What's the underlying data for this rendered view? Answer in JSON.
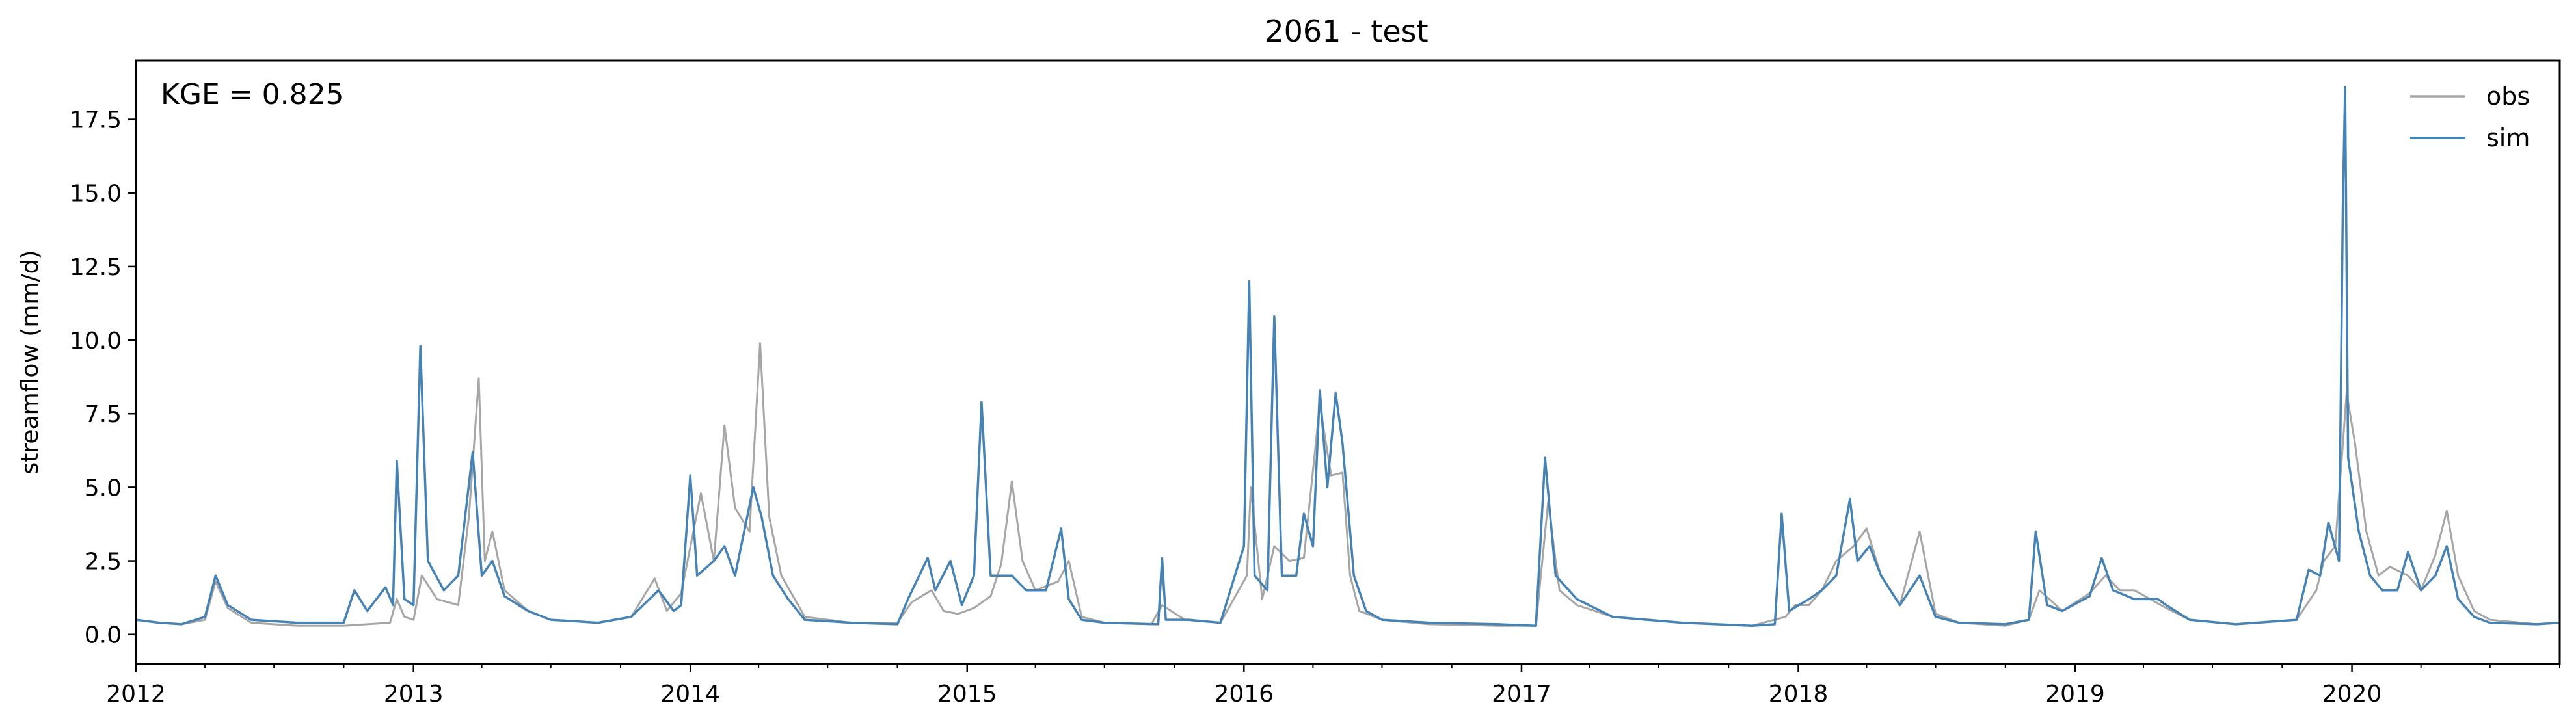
{
  "chart_data": {
    "type": "line",
    "title": "2061 - test",
    "xlabel": "",
    "ylabel": "streamflow (mm/d)",
    "annotation": "KGE = 0.825",
    "xlim": [
      "2012-01-01",
      "2020-10-01"
    ],
    "ylim": [
      -1.0,
      19.5
    ],
    "x_ticks": [
      "2012",
      "2013",
      "2014",
      "2015",
      "2016",
      "2017",
      "2018",
      "2019",
      "2020"
    ],
    "y_ticks": [
      "0.0",
      "2.5",
      "5.0",
      "7.5",
      "10.0",
      "12.5",
      "15.0",
      "17.5"
    ],
    "grid": false,
    "legend_position": "top-right",
    "series": [
      {
        "name": "obs",
        "color": "#a6a6a6",
        "points": [
          [
            "2012-01-01",
            0.5
          ],
          [
            "2012-02-01",
            0.4
          ],
          [
            "2012-03-01",
            0.35
          ],
          [
            "2012-04-01",
            0.5
          ],
          [
            "2012-04-15",
            1.8
          ],
          [
            "2012-05-01",
            0.9
          ],
          [
            "2012-06-01",
            0.4
          ],
          [
            "2012-08-01",
            0.3
          ],
          [
            "2012-10-01",
            0.3
          ],
          [
            "2012-11-01",
            0.35
          ],
          [
            "2012-12-01",
            0.4
          ],
          [
            "2012-12-10",
            1.2
          ],
          [
            "2012-12-20",
            0.6
          ],
          [
            "2013-01-01",
            0.5
          ],
          [
            "2013-01-12",
            2.0
          ],
          [
            "2013-02-01",
            1.2
          ],
          [
            "2013-03-01",
            1.0
          ],
          [
            "2013-03-15",
            4.0
          ],
          [
            "2013-03-28",
            8.7
          ],
          [
            "2013-04-05",
            2.5
          ],
          [
            "2013-04-15",
            3.5
          ],
          [
            "2013-05-01",
            1.5
          ],
          [
            "2013-06-01",
            0.8
          ],
          [
            "2013-07-01",
            0.5
          ],
          [
            "2013-09-01",
            0.4
          ],
          [
            "2013-10-15",
            0.6
          ],
          [
            "2013-11-15",
            1.9
          ],
          [
            "2013-12-01",
            0.8
          ],
          [
            "2013-12-20",
            1.4
          ],
          [
            "2014-01-05",
            3.5
          ],
          [
            "2014-01-15",
            4.8
          ],
          [
            "2014-02-01",
            2.5
          ],
          [
            "2014-02-15",
            7.1
          ],
          [
            "2014-03-01",
            4.3
          ],
          [
            "2014-03-20",
            3.5
          ],
          [
            "2014-04-03",
            9.9
          ],
          [
            "2014-04-15",
            4.0
          ],
          [
            "2014-05-01",
            2.0
          ],
          [
            "2014-06-01",
            0.6
          ],
          [
            "2014-08-01",
            0.4
          ],
          [
            "2014-10-01",
            0.4
          ],
          [
            "2014-10-20",
            1.1
          ],
          [
            "2014-11-15",
            1.5
          ],
          [
            "2014-12-01",
            0.8
          ],
          [
            "2014-12-20",
            0.7
          ],
          [
            "2015-01-10",
            0.9
          ],
          [
            "2015-02-01",
            1.3
          ],
          [
            "2015-02-15",
            2.4
          ],
          [
            "2015-03-01",
            5.2
          ],
          [
            "2015-03-15",
            2.5
          ],
          [
            "2015-04-01",
            1.5
          ],
          [
            "2015-05-01",
            1.8
          ],
          [
            "2015-05-15",
            2.5
          ],
          [
            "2015-06-01",
            0.6
          ],
          [
            "2015-07-01",
            0.4
          ],
          [
            "2015-09-01",
            0.35
          ],
          [
            "2015-09-15",
            1.0
          ],
          [
            "2015-10-15",
            0.5
          ],
          [
            "2015-12-01",
            0.4
          ],
          [
            "2016-01-05",
            2.0
          ],
          [
            "2016-01-10",
            5.0
          ],
          [
            "2016-01-25",
            1.2
          ],
          [
            "2016-02-10",
            3.0
          ],
          [
            "2016-03-01",
            2.5
          ],
          [
            "2016-03-20",
            2.6
          ],
          [
            "2016-04-10",
            7.8
          ],
          [
            "2016-04-25",
            5.4
          ],
          [
            "2016-05-10",
            5.5
          ],
          [
            "2016-05-20",
            2.0
          ],
          [
            "2016-06-01",
            0.8
          ],
          [
            "2016-07-01",
            0.5
          ],
          [
            "2016-09-01",
            0.35
          ],
          [
            "2016-12-01",
            0.3
          ],
          [
            "2017-01-20",
            0.3
          ],
          [
            "2017-02-05",
            4.5
          ],
          [
            "2017-02-20",
            1.5
          ],
          [
            "2017-03-15",
            1.0
          ],
          [
            "2017-05-01",
            0.6
          ],
          [
            "2017-08-01",
            0.4
          ],
          [
            "2017-11-01",
            0.3
          ],
          [
            "2017-12-15",
            0.6
          ],
          [
            "2017-12-28",
            1.0
          ],
          [
            "2018-01-15",
            1.0
          ],
          [
            "2018-02-01",
            1.5
          ],
          [
            "2018-02-20",
            2.5
          ],
          [
            "2018-03-15",
            3.0
          ],
          [
            "2018-04-01",
            3.6
          ],
          [
            "2018-04-20",
            2.0
          ],
          [
            "2018-05-15",
            1.0
          ],
          [
            "2018-06-10",
            3.5
          ],
          [
            "2018-07-01",
            0.7
          ],
          [
            "2018-08-01",
            0.4
          ],
          [
            "2018-10-01",
            0.3
          ],
          [
            "2018-11-01",
            0.5
          ],
          [
            "2018-11-15",
            1.5
          ],
          [
            "2018-12-15",
            0.8
          ],
          [
            "2019-01-20",
            1.4
          ],
          [
            "2019-02-10",
            2.0
          ],
          [
            "2019-03-01",
            1.5
          ],
          [
            "2019-03-20",
            1.5
          ],
          [
            "2019-04-10",
            1.2
          ],
          [
            "2019-05-01",
            0.9
          ],
          [
            "2019-06-01",
            0.5
          ],
          [
            "2019-08-01",
            0.35
          ],
          [
            "2019-10-20",
            0.5
          ],
          [
            "2019-11-15",
            1.5
          ],
          [
            "2019-11-25",
            2.5
          ],
          [
            "2019-12-10",
            3.0
          ],
          [
            "2019-12-25",
            8.2
          ],
          [
            "2020-01-05",
            6.5
          ],
          [
            "2020-01-20",
            3.5
          ],
          [
            "2020-02-05",
            2.0
          ],
          [
            "2020-02-20",
            2.3
          ],
          [
            "2020-03-15",
            2.0
          ],
          [
            "2020-04-01",
            1.5
          ],
          [
            "2020-04-20",
            2.7
          ],
          [
            "2020-05-05",
            4.2
          ],
          [
            "2020-05-20",
            2.0
          ],
          [
            "2020-06-10",
            0.8
          ],
          [
            "2020-07-01",
            0.5
          ],
          [
            "2020-09-01",
            0.35
          ],
          [
            "2020-10-01",
            0.4
          ]
        ]
      },
      {
        "name": "sim",
        "color": "#4682b4",
        "points": [
          [
            "2012-01-01",
            0.5
          ],
          [
            "2012-02-01",
            0.4
          ],
          [
            "2012-03-01",
            0.35
          ],
          [
            "2012-04-01",
            0.6
          ],
          [
            "2012-04-15",
            2.0
          ],
          [
            "2012-05-01",
            1.0
          ],
          [
            "2012-06-01",
            0.5
          ],
          [
            "2012-08-01",
            0.4
          ],
          [
            "2012-10-01",
            0.4
          ],
          [
            "2012-10-15",
            1.5
          ],
          [
            "2012-11-01",
            0.8
          ],
          [
            "2012-11-25",
            1.6
          ],
          [
            "2012-12-05",
            1.0
          ],
          [
            "2012-12-10",
            5.9
          ],
          [
            "2012-12-20",
            1.2
          ],
          [
            "2013-01-01",
            1.0
          ],
          [
            "2013-01-10",
            9.8
          ],
          [
            "2013-01-20",
            2.5
          ],
          [
            "2013-02-10",
            1.5
          ],
          [
            "2013-03-01",
            2.0
          ],
          [
            "2013-03-20",
            6.2
          ],
          [
            "2013-04-01",
            2.0
          ],
          [
            "2013-04-15",
            2.5
          ],
          [
            "2013-05-01",
            1.3
          ],
          [
            "2013-06-01",
            0.8
          ],
          [
            "2013-07-01",
            0.5
          ],
          [
            "2013-09-01",
            0.4
          ],
          [
            "2013-10-15",
            0.6
          ],
          [
            "2013-11-20",
            1.5
          ],
          [
            "2013-12-10",
            0.8
          ],
          [
            "2013-12-20",
            1.0
          ],
          [
            "2014-01-01",
            5.4
          ],
          [
            "2014-01-10",
            2.0
          ],
          [
            "2014-02-01",
            2.5
          ],
          [
            "2014-02-15",
            3.0
          ],
          [
            "2014-03-01",
            2.0
          ],
          [
            "2014-03-25",
            5.0
          ],
          [
            "2014-04-05",
            4.0
          ],
          [
            "2014-04-20",
            2.0
          ],
          [
            "2014-05-10",
            1.2
          ],
          [
            "2014-06-01",
            0.5
          ],
          [
            "2014-08-01",
            0.4
          ],
          [
            "2014-10-01",
            0.35
          ],
          [
            "2014-10-15",
            1.2
          ],
          [
            "2014-11-10",
            2.6
          ],
          [
            "2014-11-20",
            1.5
          ],
          [
            "2014-12-10",
            2.5
          ],
          [
            "2014-12-25",
            1.0
          ],
          [
            "2015-01-10",
            2.0
          ],
          [
            "2015-01-20",
            7.9
          ],
          [
            "2015-02-01",
            2.0
          ],
          [
            "2015-03-01",
            2.0
          ],
          [
            "2015-03-20",
            1.5
          ],
          [
            "2015-04-15",
            1.5
          ],
          [
            "2015-05-05",
            3.6
          ],
          [
            "2015-05-15",
            1.2
          ],
          [
            "2015-06-01",
            0.5
          ],
          [
            "2015-07-01",
            0.4
          ],
          [
            "2015-09-10",
            0.35
          ],
          [
            "2015-09-15",
            2.6
          ],
          [
            "2015-09-20",
            0.5
          ],
          [
            "2015-10-20",
            0.5
          ],
          [
            "2015-12-01",
            0.4
          ],
          [
            "2016-01-01",
            3.0
          ],
          [
            "2016-01-08",
            12.0
          ],
          [
            "2016-01-15",
            2.0
          ],
          [
            "2016-02-01",
            1.5
          ],
          [
            "2016-02-10",
            10.8
          ],
          [
            "2016-02-20",
            2.0
          ],
          [
            "2016-03-10",
            2.0
          ],
          [
            "2016-03-20",
            4.1
          ],
          [
            "2016-04-01",
            3.0
          ],
          [
            "2016-04-10",
            8.3
          ],
          [
            "2016-04-20",
            5.0
          ],
          [
            "2016-05-01",
            8.2
          ],
          [
            "2016-05-10",
            6.5
          ],
          [
            "2016-05-25",
            2.0
          ],
          [
            "2016-06-10",
            0.8
          ],
          [
            "2016-07-01",
            0.5
          ],
          [
            "2016-09-01",
            0.4
          ],
          [
            "2016-12-01",
            0.35
          ],
          [
            "2017-01-20",
            0.3
          ],
          [
            "2017-02-01",
            6.0
          ],
          [
            "2017-02-15",
            2.0
          ],
          [
            "2017-03-15",
            1.2
          ],
          [
            "2017-05-01",
            0.6
          ],
          [
            "2017-08-01",
            0.4
          ],
          [
            "2017-11-01",
            0.3
          ],
          [
            "2017-12-01",
            0.35
          ],
          [
            "2017-12-10",
            4.1
          ],
          [
            "2017-12-20",
            0.8
          ],
          [
            "2018-01-15",
            1.2
          ],
          [
            "2018-02-01",
            1.5
          ],
          [
            "2018-02-20",
            2.0
          ],
          [
            "2018-03-10",
            4.6
          ],
          [
            "2018-03-20",
            2.5
          ],
          [
            "2018-04-05",
            3.0
          ],
          [
            "2018-04-20",
            2.0
          ],
          [
            "2018-05-15",
            1.0
          ],
          [
            "2018-06-10",
            2.0
          ],
          [
            "2018-07-01",
            0.6
          ],
          [
            "2018-08-01",
            0.4
          ],
          [
            "2018-10-01",
            0.35
          ],
          [
            "2018-11-01",
            0.5
          ],
          [
            "2018-11-10",
            3.5
          ],
          [
            "2018-11-25",
            1.0
          ],
          [
            "2018-12-15",
            0.8
          ],
          [
            "2019-01-20",
            1.3
          ],
          [
            "2019-02-05",
            2.6
          ],
          [
            "2019-02-20",
            1.5
          ],
          [
            "2019-03-20",
            1.2
          ],
          [
            "2019-04-20",
            1.2
          ],
          [
            "2019-05-01",
            1.0
          ],
          [
            "2019-06-01",
            0.5
          ],
          [
            "2019-08-01",
            0.35
          ],
          [
            "2019-10-20",
            0.5
          ],
          [
            "2019-11-05",
            2.2
          ],
          [
            "2019-11-20",
            2.0
          ],
          [
            "2019-12-01",
            3.8
          ],
          [
            "2019-12-15",
            2.5
          ],
          [
            "2019-12-20",
            14.6
          ],
          [
            "2019-12-23",
            18.6
          ],
          [
            "2019-12-27",
            6.0
          ],
          [
            "2020-01-10",
            3.5
          ],
          [
            "2020-01-25",
            2.0
          ],
          [
            "2020-02-10",
            1.5
          ],
          [
            "2020-03-01",
            1.5
          ],
          [
            "2020-03-15",
            2.8
          ],
          [
            "2020-04-01",
            1.5
          ],
          [
            "2020-04-20",
            2.0
          ],
          [
            "2020-05-05",
            3.0
          ],
          [
            "2020-05-20",
            1.2
          ],
          [
            "2020-06-10",
            0.6
          ],
          [
            "2020-07-01",
            0.4
          ],
          [
            "2020-09-01",
            0.35
          ],
          [
            "2020-10-01",
            0.4
          ]
        ]
      }
    ]
  }
}
